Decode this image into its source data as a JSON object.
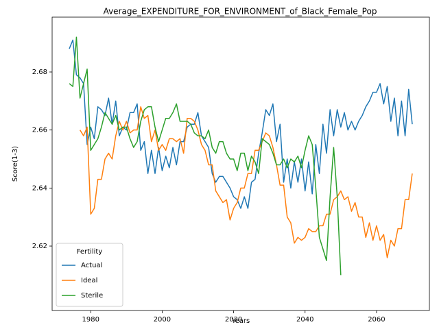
{
  "chart_data": {
    "type": "line",
    "title": "Average_EXPENDITURE_FOR_ENVIRONMENT_of_Black_Female_Pop",
    "xlabel": "Years",
    "ylabel": "Score(1-3)",
    "legend_title": "Fertility",
    "legend": "lower left",
    "grid": false,
    "x": [
      1974,
      1975,
      1976,
      1977,
      1978,
      1979,
      1980,
      1981,
      1982,
      1983,
      1984,
      1985,
      1986,
      1987,
      1988,
      1989,
      1990,
      1991,
      1992,
      1993,
      1994,
      1995,
      1996,
      1997,
      1998,
      1999,
      2000,
      2001,
      2002,
      2003,
      2004,
      2005,
      2006,
      2007,
      2008,
      2009,
      2010,
      2011,
      2012,
      2013,
      2014,
      2015,
      2016,
      2017,
      2018,
      2019,
      2020,
      2021,
      2022,
      2023,
      2024,
      2025,
      2026,
      2027,
      2028,
      2029,
      2030,
      2031,
      2032,
      2033,
      2034,
      2035,
      2036,
      2037,
      2038,
      2039,
      2040,
      2041,
      2042,
      2043,
      2044,
      2045,
      2046,
      2047,
      2048,
      2049,
      2050,
      2051,
      2052,
      2053,
      2054,
      2055,
      2056,
      2057,
      2058,
      2059,
      2060,
      2061,
      2062,
      2063,
      2064,
      2065,
      2066,
      2067,
      2068,
      2069,
      2070
    ],
    "xlim": [
      1969.2,
      2074.8
    ],
    "xticks": [
      1980,
      2000,
      2020,
      2040,
      2060
    ],
    "ylim": [
      2.5978,
      2.6989
    ],
    "yticks": [
      2.62,
      2.64,
      2.66,
      2.68
    ],
    "series": [
      {
        "name": "Actual",
        "color": "#1f77b4",
        "values": [
          2.688,
          2.691,
          2.679,
          2.678,
          2.676,
          2.655,
          2.661,
          2.657,
          2.668,
          2.667,
          2.665,
          2.671,
          2.662,
          2.67,
          2.658,
          2.661,
          2.66,
          2.666,
          2.666,
          2.669,
          2.653,
          2.656,
          2.645,
          2.653,
          2.645,
          2.654,
          2.646,
          2.651,
          2.647,
          2.654,
          2.648,
          2.656,
          2.656,
          2.661,
          2.662,
          2.662,
          2.666,
          2.658,
          2.656,
          2.654,
          2.645,
          2.642,
          2.644,
          2.644,
          2.642,
          2.64,
          2.637,
          2.636,
          2.633,
          2.637,
          2.633,
          2.642,
          2.643,
          2.652,
          2.659,
          2.667,
          2.665,
          2.669,
          2.656,
          2.662,
          2.642,
          2.65,
          2.64,
          2.649,
          2.642,
          2.65,
          2.639,
          2.649,
          2.638,
          2.655,
          2.645,
          2.662,
          2.652,
          2.667,
          2.658,
          2.667,
          2.661,
          2.666,
          2.66,
          2.663,
          2.66,
          2.663,
          2.665,
          2.668,
          2.67,
          2.673,
          2.673,
          2.676,
          2.669,
          2.675,
          2.663,
          2.671,
          2.658,
          2.67,
          2.658,
          2.674,
          2.662
        ]
      },
      {
        "name": "Ideal",
        "color": "#ff7f0e",
        "values": [
          null,
          null,
          null,
          2.66,
          2.658,
          2.661,
          2.631,
          2.633,
          2.643,
          2.643,
          2.65,
          2.652,
          2.65,
          2.658,
          2.663,
          2.66,
          2.663,
          2.659,
          2.66,
          2.66,
          2.668,
          2.664,
          2.665,
          2.656,
          2.66,
          2.653,
          2.655,
          2.653,
          2.657,
          2.657,
          2.656,
          2.657,
          2.652,
          2.664,
          2.664,
          2.663,
          2.66,
          2.655,
          2.653,
          2.648,
          2.648,
          2.639,
          2.637,
          2.635,
          2.636,
          2.629,
          2.633,
          2.635,
          2.64,
          2.64,
          2.645,
          2.645,
          2.653,
          2.653,
          2.656,
          2.659,
          2.658,
          2.654,
          2.648,
          2.641,
          2.641,
          2.63,
          2.628,
          2.621,
          2.623,
          2.622,
          2.623,
          2.626,
          2.625,
          2.625,
          2.627,
          2.627,
          2.631,
          2.631,
          2.636,
          2.637,
          2.639,
          2.636,
          2.637,
          2.632,
          2.635,
          2.63,
          2.63,
          2.623,
          2.628,
          2.622,
          2.627,
          2.622,
          2.624,
          2.616,
          2.622,
          2.62,
          2.626,
          2.626,
          2.636,
          2.636,
          2.645
        ]
      },
      {
        "name": "Sterile",
        "color": "#2ca02c",
        "values": [
          2.676,
          2.675,
          2.692,
          2.671,
          2.676,
          2.681,
          2.653,
          2.655,
          2.657,
          2.661,
          2.666,
          2.664,
          2.662,
          2.665,
          2.66,
          2.661,
          2.661,
          2.657,
          2.654,
          2.656,
          2.663,
          2.667,
          2.668,
          2.668,
          2.661,
          2.656,
          2.66,
          2.664,
          2.664,
          2.666,
          2.669,
          2.663,
          2.663,
          2.663,
          2.662,
          2.659,
          2.658,
          2.658,
          2.657,
          2.66,
          2.654,
          2.652,
          2.656,
          2.656,
          2.652,
          2.65,
          2.65,
          2.646,
          2.652,
          2.652,
          2.646,
          2.651,
          2.649,
          2.645,
          2.657,
          2.656,
          2.655,
          2.652,
          2.648,
          2.648,
          2.65,
          2.647,
          2.65,
          2.649,
          2.651,
          2.647,
          2.653,
          2.658,
          2.655,
          2.64,
          2.623,
          2.619,
          2.615,
          2.637,
          2.654,
          2.637,
          2.61,
          null,
          null,
          null,
          null,
          null,
          null,
          null,
          null,
          null,
          null,
          null,
          null,
          null,
          null,
          null,
          null,
          null,
          null,
          null,
          null
        ]
      }
    ]
  }
}
